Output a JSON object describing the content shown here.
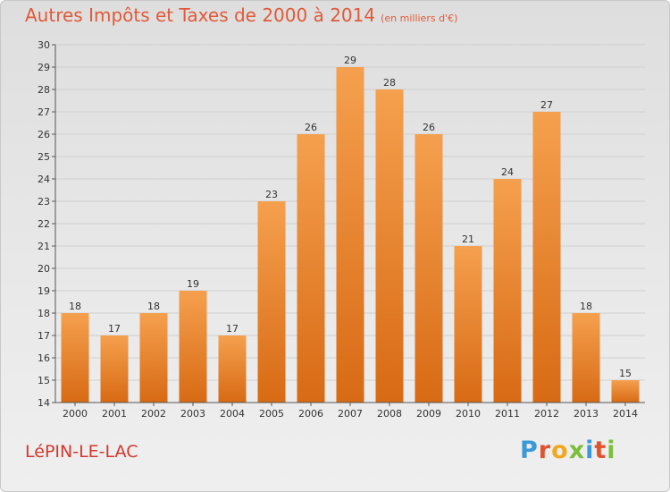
{
  "title": "Autres Impôts et Taxes de 2000 à 2014",
  "unit": "(en milliers d'€)",
  "commune": "LéPIN-LE-LAC",
  "logo": "Proxiti",
  "colors": {
    "bar_top": "#f5a04e",
    "bar_bottom": "#d86a14",
    "title": "#e05a38",
    "commune": "#d2382e"
  },
  "chart_data": {
    "type": "bar",
    "categories": [
      "2000",
      "2001",
      "2002",
      "2003",
      "2004",
      "2005",
      "2006",
      "2007",
      "2008",
      "2009",
      "2010",
      "2011",
      "2012",
      "2013",
      "2014"
    ],
    "values": [
      18,
      17,
      18,
      19,
      17,
      23,
      26,
      29,
      28,
      26,
      21,
      24,
      27,
      18,
      15
    ],
    "ylim": [
      14,
      30
    ],
    "yticks": [
      14,
      15,
      16,
      17,
      18,
      19,
      20,
      21,
      22,
      23,
      24,
      25,
      26,
      27,
      28,
      29,
      30
    ],
    "grid": true
  }
}
